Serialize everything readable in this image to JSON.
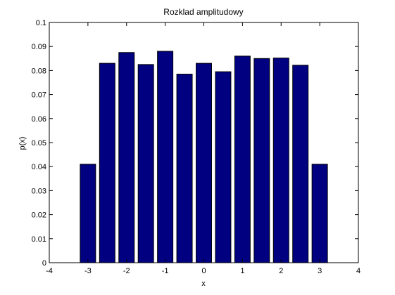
{
  "chart_data": {
    "type": "bar",
    "title": "Rozklad amplitudowy",
    "xlabel": "x",
    "ylabel": "p(x)",
    "xlim": [
      -4,
      4
    ],
    "ylim": [
      0,
      0.1
    ],
    "x": [
      -3,
      -2.5,
      -2,
      -1.5,
      -1,
      -0.5,
      0,
      0.5,
      1,
      1.5,
      2,
      2.5,
      3
    ],
    "values": [
      0.041,
      0.083,
      0.0875,
      0.0825,
      0.088,
      0.0785,
      0.083,
      0.0795,
      0.086,
      0.085,
      0.0852,
      0.0822,
      0.041
    ],
    "xticks": [
      "-4",
      "-3",
      "-2",
      "-1",
      "0",
      "1",
      "2",
      "3",
      "4"
    ],
    "yticks": [
      "0",
      "0.01",
      "0.02",
      "0.03",
      "0.04",
      "0.05",
      "0.06",
      "0.07",
      "0.08",
      "0.09",
      "0.1"
    ],
    "grid": false,
    "legend": "none",
    "colors": {
      "bar_fill": "#000080",
      "bar_edge": "#000000",
      "axes": "#000000",
      "background": "#ffffff"
    }
  }
}
